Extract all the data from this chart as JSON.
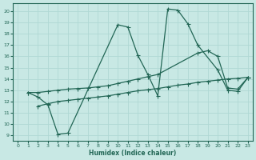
{
  "xlabel": "Humidex (Indice chaleur)",
  "ylabel": "",
  "bg_color": "#c8e8e4",
  "grid_color": "#b0d8d4",
  "line_color": "#226655",
  "xlim": [
    -0.5,
    23.5
  ],
  "ylim": [
    8.5,
    20.7
  ],
  "xticks": [
    0,
    1,
    2,
    3,
    4,
    5,
    6,
    7,
    8,
    9,
    10,
    11,
    12,
    13,
    14,
    15,
    16,
    17,
    18,
    19,
    20,
    21,
    22,
    23
  ],
  "yticks": [
    9,
    10,
    11,
    12,
    13,
    14,
    15,
    16,
    17,
    18,
    19,
    20
  ],
  "line1_x": [
    1,
    2,
    3,
    4,
    5,
    10,
    11,
    12,
    13,
    14,
    15,
    16,
    17,
    18,
    20,
    21,
    22,
    23
  ],
  "line1_y": [
    12.8,
    12.4,
    11.7,
    9.1,
    9.2,
    18.8,
    18.6,
    16.1,
    14.4,
    12.5,
    20.2,
    20.1,
    18.9,
    17.0,
    14.8,
    13.0,
    12.9,
    14.1
  ],
  "line2_x": [
    1,
    2,
    3,
    4,
    5,
    6,
    7,
    8,
    9,
    10,
    11,
    12,
    13,
    14,
    18,
    19,
    20,
    21,
    22,
    23
  ],
  "line2_y": [
    12.8,
    12.8,
    12.9,
    13.0,
    13.1,
    13.15,
    13.2,
    13.3,
    13.4,
    13.6,
    13.8,
    14.0,
    14.2,
    14.4,
    16.3,
    16.5,
    16.0,
    13.2,
    13.1,
    14.1
  ],
  "line3_x": [
    2,
    3,
    4,
    5,
    6,
    7,
    8,
    9,
    10,
    11,
    12,
    13,
    14,
    15,
    16,
    17,
    18,
    19,
    20,
    21,
    22,
    23
  ],
  "line3_y": [
    11.6,
    11.8,
    12.0,
    12.1,
    12.2,
    12.3,
    12.4,
    12.5,
    12.65,
    12.8,
    12.95,
    13.05,
    13.15,
    13.3,
    13.45,
    13.55,
    13.7,
    13.8,
    13.9,
    14.0,
    14.05,
    14.15
  ]
}
